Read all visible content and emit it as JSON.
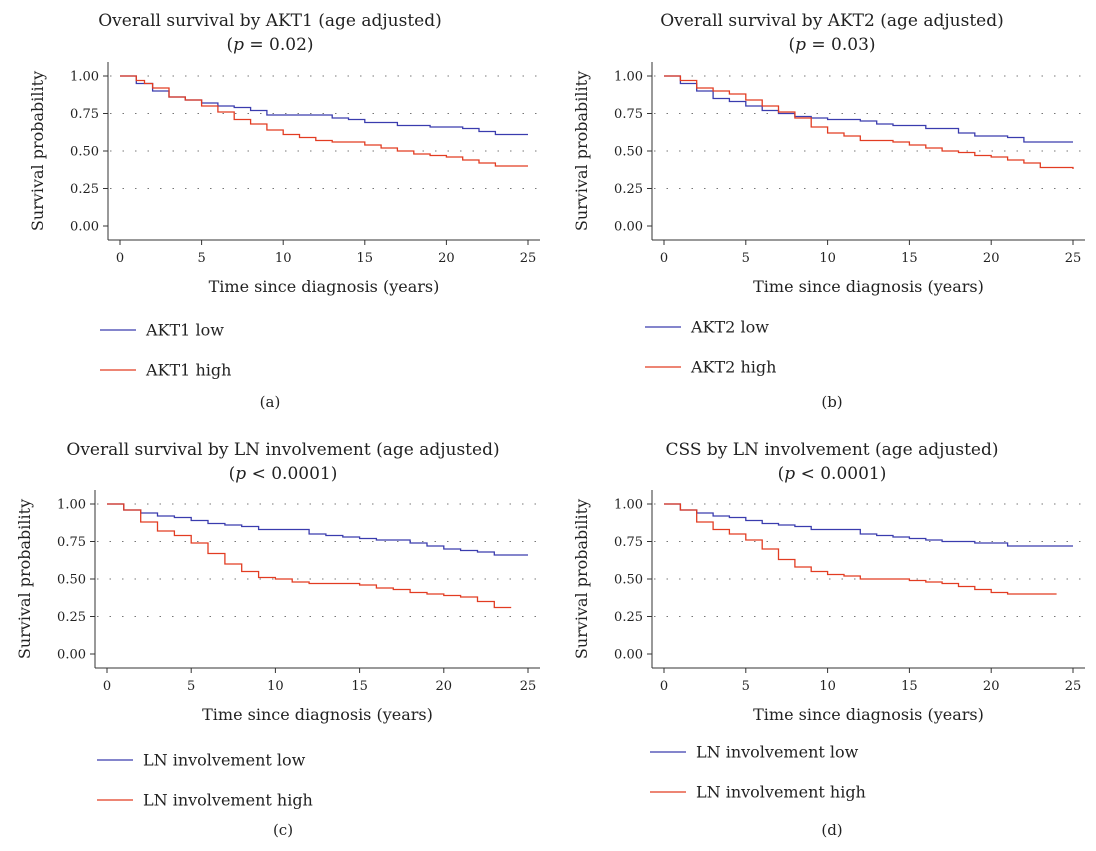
{
  "colors": {
    "low": "#3a3cae",
    "high": "#e23c22",
    "grid": "#777777",
    "axis": "#333333"
  },
  "chart_data": [
    {
      "type": "line",
      "panel": "(a)",
      "title": "Overall survival  by AKT1 (age adjusted)",
      "subtitle_p": "p",
      "subtitle_rest": " = 0.02)",
      "xlabel": "Time since diagnosis (years)",
      "ylabel": "Survival probability",
      "xlim": [
        0,
        25
      ],
      "ylim": [
        0,
        1
      ],
      "x_ticks": [
        "0",
        "5",
        "10",
        "15",
        "20",
        "25"
      ],
      "y_ticks": [
        "0.00",
        "0.25",
        "0.50",
        "0.75",
        "1.00"
      ],
      "grid": "horizontal dotted",
      "step": true,
      "series": [
        {
          "name": "AKT1 low",
          "color_key": "low",
          "x": [
            0,
            1,
            2,
            3,
            4,
            5,
            6,
            7,
            8,
            9,
            10,
            12,
            13,
            14,
            15,
            17,
            19,
            21,
            22,
            23,
            25
          ],
          "y": [
            1.0,
            0.95,
            0.9,
            0.86,
            0.84,
            0.82,
            0.8,
            0.79,
            0.77,
            0.74,
            0.74,
            0.74,
            0.72,
            0.71,
            0.69,
            0.67,
            0.66,
            0.65,
            0.63,
            0.61,
            0.61
          ]
        },
        {
          "name": "AKT1 high",
          "color_key": "high",
          "x": [
            0,
            1,
            1.5,
            2,
            3,
            4,
            5,
            6,
            7,
            8,
            9,
            10,
            11,
            12,
            13,
            15,
            16,
            17,
            18,
            19,
            20,
            21,
            22,
            23,
            25
          ],
          "y": [
            1.0,
            0.97,
            0.95,
            0.92,
            0.86,
            0.84,
            0.8,
            0.76,
            0.71,
            0.68,
            0.64,
            0.61,
            0.59,
            0.57,
            0.56,
            0.54,
            0.52,
            0.5,
            0.48,
            0.47,
            0.46,
            0.44,
            0.42,
            0.4,
            0.4
          ]
        }
      ]
    },
    {
      "type": "line",
      "panel": "(b)",
      "title": "Overall survival  by AKT2 (age adjusted)",
      "subtitle_p": "p",
      "subtitle_rest": " = 0.03)",
      "xlabel": "Time since diagnosis (years)",
      "ylabel": "Survival probability",
      "xlim": [
        0,
        25
      ],
      "ylim": [
        0,
        1
      ],
      "x_ticks": [
        "0",
        "5",
        "10",
        "15",
        "20",
        "25"
      ],
      "y_ticks": [
        "0.00",
        "0.25",
        "0.50",
        "0.75",
        "1.00"
      ],
      "grid": "horizontal dotted",
      "step": true,
      "series": [
        {
          "name": "AKT2 low",
          "color_key": "low",
          "x": [
            0,
            1,
            2,
            3,
            4,
            5,
            6,
            7,
            8,
            9,
            10,
            12,
            13,
            14,
            16,
            18,
            19,
            21,
            22,
            25
          ],
          "y": [
            1.0,
            0.95,
            0.9,
            0.85,
            0.83,
            0.8,
            0.77,
            0.75,
            0.73,
            0.72,
            0.71,
            0.7,
            0.68,
            0.67,
            0.65,
            0.62,
            0.6,
            0.59,
            0.56,
            0.56
          ]
        },
        {
          "name": "AKT2 high",
          "color_key": "high",
          "x": [
            0,
            1,
            2,
            3,
            4,
            5,
            6,
            7,
            8,
            9,
            10,
            11,
            12,
            14,
            15,
            16,
            17,
            18,
            19,
            20,
            21,
            22,
            23,
            25
          ],
          "y": [
            1.0,
            0.97,
            0.92,
            0.9,
            0.88,
            0.84,
            0.8,
            0.76,
            0.72,
            0.66,
            0.62,
            0.6,
            0.57,
            0.56,
            0.54,
            0.52,
            0.5,
            0.49,
            0.47,
            0.46,
            0.44,
            0.42,
            0.39,
            0.38
          ]
        }
      ]
    },
    {
      "type": "line",
      "panel": "(c)",
      "title": "Overall survival  by LN involvement (age adjusted)",
      "subtitle_p": "p",
      "subtitle_rest": " < 0.0001)",
      "xlabel": "Time since diagnosis (years)",
      "ylabel": "Survival probability",
      "xlim": [
        0,
        25
      ],
      "ylim": [
        0,
        1
      ],
      "x_ticks": [
        "0",
        "5",
        "10",
        "15",
        "20",
        "25"
      ],
      "y_ticks": [
        "0.00",
        "0.25",
        "0.50",
        "0.75",
        "1.00"
      ],
      "grid": "horizontal dotted",
      "step": true,
      "series": [
        {
          "name": "LN involvement low",
          "color_key": "low",
          "x": [
            0,
            1,
            2,
            3,
            4,
            5,
            6,
            7,
            8,
            9,
            12,
            13,
            14,
            15,
            16,
            18,
            19,
            20,
            21,
            22,
            23,
            25
          ],
          "y": [
            1.0,
            0.96,
            0.94,
            0.92,
            0.91,
            0.89,
            0.87,
            0.86,
            0.85,
            0.83,
            0.8,
            0.79,
            0.78,
            0.77,
            0.76,
            0.74,
            0.72,
            0.7,
            0.69,
            0.68,
            0.66,
            0.66
          ]
        },
        {
          "name": "LN involvement high",
          "color_key": "high",
          "x": [
            0,
            1,
            2,
            3,
            4,
            5,
            6,
            7,
            8,
            9,
            10,
            11,
            12,
            15,
            16,
            17,
            18,
            19,
            20,
            21,
            22,
            23,
            24
          ],
          "y": [
            1.0,
            0.96,
            0.88,
            0.82,
            0.79,
            0.74,
            0.67,
            0.6,
            0.55,
            0.51,
            0.5,
            0.48,
            0.47,
            0.46,
            0.44,
            0.43,
            0.41,
            0.4,
            0.39,
            0.38,
            0.35,
            0.31,
            0.31
          ]
        }
      ]
    },
    {
      "type": "line",
      "panel": "(d)",
      "title": "CSS by LN involvement (age adjusted)",
      "subtitle_p": "p",
      "subtitle_rest": " < 0.0001)",
      "xlabel": "Time since diagnosis (years)",
      "ylabel": "Survival probability",
      "xlim": [
        0,
        25
      ],
      "ylim": [
        0,
        1
      ],
      "x_ticks": [
        "0",
        "5",
        "10",
        "15",
        "20",
        "25"
      ],
      "y_ticks": [
        "0.00",
        "0.25",
        "0.50",
        "0.75",
        "1.00"
      ],
      "grid": "horizontal dotted",
      "step": true,
      "series": [
        {
          "name": "LN involvement low",
          "color_key": "low",
          "x": [
            0,
            1,
            2,
            3,
            4,
            5,
            6,
            7,
            8,
            9,
            12,
            13,
            14,
            15,
            16,
            17,
            19,
            21,
            25
          ],
          "y": [
            1.0,
            0.96,
            0.94,
            0.92,
            0.91,
            0.89,
            0.87,
            0.86,
            0.85,
            0.83,
            0.8,
            0.79,
            0.78,
            0.77,
            0.76,
            0.75,
            0.74,
            0.72,
            0.72
          ]
        },
        {
          "name": "LN involvement high",
          "color_key": "high",
          "x": [
            0,
            1,
            2,
            3,
            4,
            5,
            6,
            7,
            8,
            9,
            10,
            11,
            12,
            15,
            16,
            17,
            18,
            19,
            20,
            21,
            24
          ],
          "y": [
            1.0,
            0.96,
            0.88,
            0.83,
            0.8,
            0.76,
            0.7,
            0.63,
            0.58,
            0.55,
            0.53,
            0.52,
            0.5,
            0.49,
            0.48,
            0.47,
            0.45,
            0.43,
            0.41,
            0.4,
            0.4
          ]
        }
      ]
    }
  ]
}
